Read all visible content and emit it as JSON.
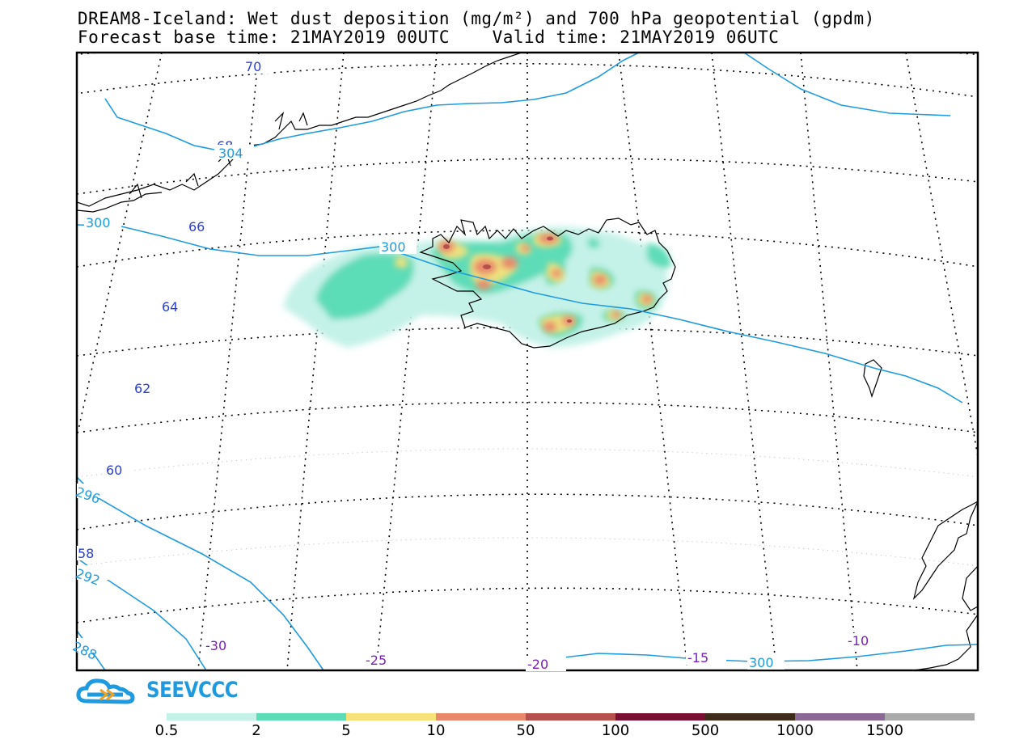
{
  "title": {
    "line1": "DREAM8-Iceland: Wet dust deposition (mg/m²) and 700 hPa geopotential (gpdm)",
    "line2": "Forecast base time: 21MAY2019 00UTC    Valid time: 21MAY2019 06UTC"
  },
  "latitude_labels": [
    "70",
    "68",
    "66",
    "64",
    "62",
    "60",
    "58"
  ],
  "longitude_labels": [
    "-30",
    "-25",
    "-20",
    "-15",
    "-10"
  ],
  "contour_labels": [
    "304",
    "300",
    "300",
    "296",
    "292",
    "288",
    "300"
  ],
  "logo": {
    "text": "SEEVCCC"
  },
  "legend": {
    "colors": [
      "#c5f2e8",
      "#5ddcb8",
      "#f7e27a",
      "#e8876a",
      "#b5504d",
      "#7a0f33",
      "#3f2b1a",
      "#8a6a95",
      "#aaaaaa"
    ],
    "labels": [
      "0.5",
      "2",
      "5",
      "10",
      "50",
      "100",
      "500",
      "1000",
      "1500"
    ]
  },
  "colors": {
    "contour": "#1e9be0",
    "lat_label": "#2a3fd6",
    "lon_label": "#7a1fc0"
  }
}
